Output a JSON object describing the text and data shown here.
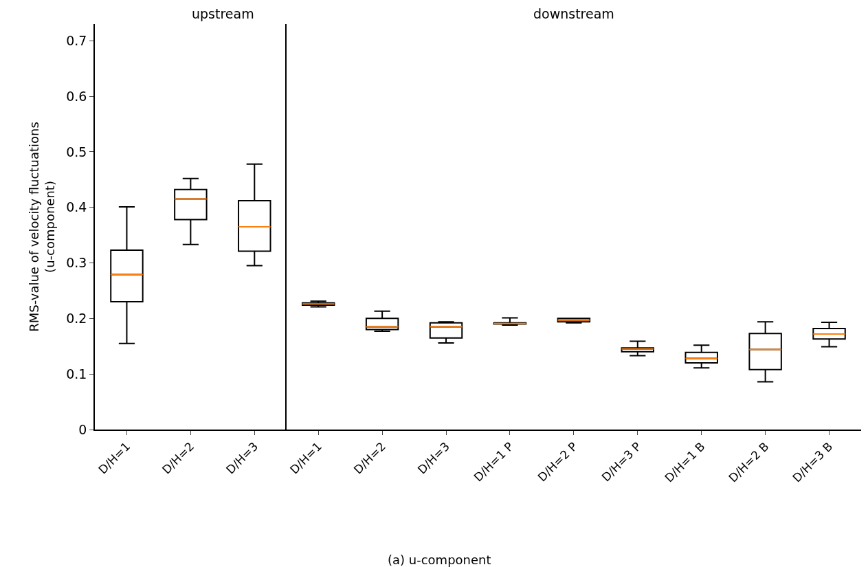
{
  "chart_data": [
    {
      "type": "box",
      "title": "upstream",
      "ylabel": "RMS-value of velocity fluctuations\n(u-component)",
      "categories": [
        "D/H=1",
        "D/H=2",
        "D/H=3"
      ],
      "ylim": [
        0,
        0.73
      ],
      "yticks": [
        0,
        {
          "value": 0.1,
          "label": "0.1"
        },
        {
          "value": 0.2,
          "label": "0.2"
        },
        {
          "value": 0.3,
          "label": "0.3"
        },
        {
          "value": 0.4,
          "label": "0.4"
        },
        {
          "value": 0.5,
          "label": "0.5"
        },
        {
          "value": 0.6,
          "label": "0.6"
        },
        {
          "value": 0.7,
          "label": "0.7"
        }
      ],
      "annotations": [
        "(a) u-component"
      ],
      "series": [
        {
          "color": "#000000",
          "boxes": [
            {
              "low": 0.155,
              "q1": 0.23,
              "median": 0.279,
              "q3": 0.323,
              "high": 0.401
            },
            {
              "low": 0.333,
              "q1": 0.378,
              "median": 0.415,
              "q3": 0.432,
              "high": 0.452
            },
            {
              "low": 0.295,
              "q1": 0.321,
              "median": 0.365,
              "q3": 0.412,
              "high": 0.478
            }
          ]
        }
      ]
    },
    {
      "type": "box",
      "title": "downstream",
      "categories": [
        "D/H=1",
        "D/H=2",
        "D/H=3",
        "D/H=1 P",
        "D/H=2 P",
        "D/H=3 P",
        "D/H=1 B",
        "D/H=2 B",
        "D/H=3 B"
      ],
      "ylim": [
        0,
        0.73
      ],
      "tick_labels": "x",
      "series": [
        {
          "color": "#000000",
          "boxes": [
            {
              "low": 0.221,
              "q1": 0.224,
              "median": 0.226,
              "q3": 0.228,
              "high": 0.231
            },
            {
              "low": 0.177,
              "q1": 0.18,
              "median": 0.185,
              "q3": 0.2,
              "high": 0.213
            },
            {
              "low": 0.156,
              "q1": 0.165,
              "median": 0.185,
              "q3": 0.192,
              "high": 0.194
            },
            {
              "low": 0.188,
              "q1": 0.19,
              "median": 0.191,
              "q3": 0.192,
              "high": 0.201
            },
            {
              "low": 0.192,
              "q1": 0.194,
              "median": 0.197,
              "q3": 0.2,
              "high": 0.2
            },
            {
              "low": 0.133,
              "q1": 0.14,
              "median": 0.145,
              "q3": 0.147,
              "high": 0.159
            },
            {
              "low": 0.111,
              "q1": 0.12,
              "median": 0.128,
              "q3": 0.139,
              "high": 0.152
            },
            {
              "low": 0.086,
              "q1": 0.108,
              "median": 0.144,
              "q3": 0.173,
              "high": 0.194
            },
            {
              "low": 0.149,
              "q1": 0.163,
              "median": 0.172,
              "q3": 0.182,
              "high": 0.193
            }
          ]
        }
      ]
    }
  ]
}
